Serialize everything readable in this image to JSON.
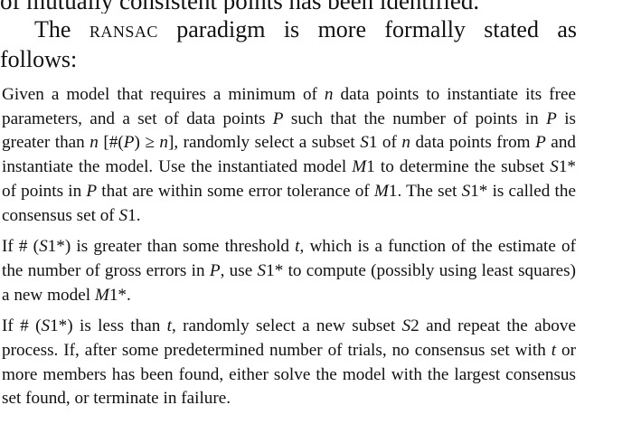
{
  "page": {
    "cut_line": "of mutually consistent points has been identified.",
    "intro": {
      "part1": "The ",
      "ransac": "ransac",
      "part2": " paradigm is more formally stated as",
      "part3": "follows:"
    },
    "step1": {
      "t1": "Given a model that requires a minimum of ",
      "v1": "n",
      "t2": " data points to instantiate its free parameters, and a set of data points ",
      "v2": "P",
      "t3": " such that the number of points in ",
      "v3": "P",
      "t4": " is greater than ",
      "v4": "n",
      "t5": " [#(",
      "v5": "P",
      "t6": ") ≥ ",
      "v6": "n",
      "t7": "], randomly select a subset ",
      "v7": "S",
      "t8": "1 of ",
      "v8": "n",
      "t9": " data points from ",
      "v9": "P",
      "t10": " and instantiate the model. Use the instantiated model ",
      "v10": "M",
      "t11": "1 to determine the subset ",
      "v11": "S",
      "t12": "1* of points in ",
      "v12": "P",
      "t13": " that are within some error tolerance of ",
      "v13": "M",
      "t14": "1. The set ",
      "v14": "S",
      "t15": "1* is called the consensus set of ",
      "v15": "S",
      "t16": "1."
    },
    "step2": {
      "t1": "If # (",
      "v1": "S",
      "t2": "1*) is greater than some threshold ",
      "v2": "t",
      "t3": ", which is a function of the estimate of the number of gross errors in ",
      "v3": "P",
      "t4": ", use ",
      "v4": "S",
      "t5": "1* to compute (possibly using least squares) a new model ",
      "v5": "M",
      "t6": "1*."
    },
    "step3": {
      "t1": "If # (",
      "v1": "S",
      "t2": "1*) is less than ",
      "v2": "t",
      "t3": ", randomly select a new subset ",
      "v3": "S",
      "t4": "2 and repeat the above process. If, after some predetermined number of trials, no consensus set with ",
      "v4": "t",
      "t5": " or more members has been found, either solve the model with the largest consensus set found, or terminate in failure."
    }
  }
}
